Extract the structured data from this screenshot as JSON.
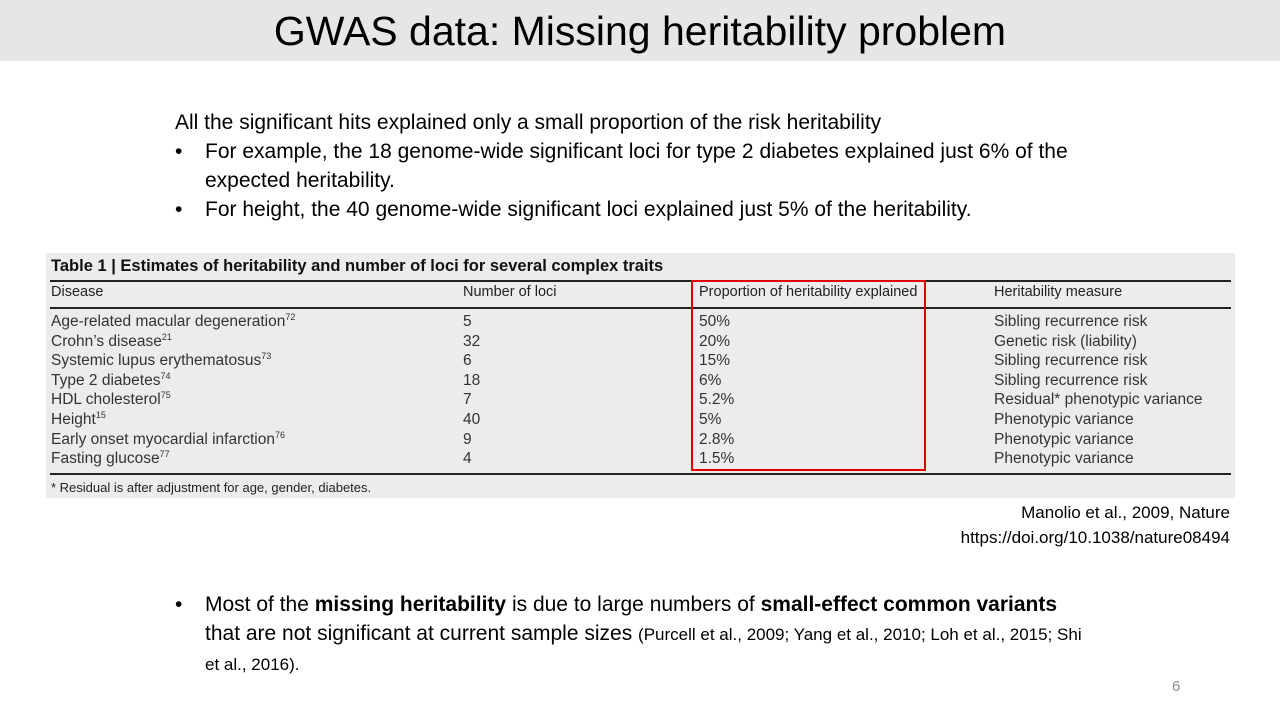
{
  "slide": {
    "title": "GWAS data: Missing heritability problem",
    "page_number": "6"
  },
  "intro": {
    "lead": "All the significant hits explained only a small proportion of the risk heritability",
    "bullet_symbol": "•",
    "bullets": [
      "For example, the 18 genome-wide significant loci for type 2 diabetes explained just 6% of the expected heritability.",
      "For height, the 40 genome-wide significant loci explained just 5% of the heritability."
    ]
  },
  "table": {
    "caption": "Table 1 | Estimates of heritability and number of loci for several complex traits",
    "headers": [
      "Disease",
      "Number of loci",
      "Proportion of heritability explained",
      "Heritability measure"
    ],
    "rows": [
      {
        "disease": "Age-related macular degeneration",
        "ref": "72",
        "loci": "5",
        "proportion": "50%",
        "measure": "Sibling recurrence risk"
      },
      {
        "disease": "Crohn’s disease",
        "ref": "21",
        "loci": "32",
        "proportion": "20%",
        "measure": "Genetic risk (liability)"
      },
      {
        "disease": "Systemic lupus erythematosus",
        "ref": "73",
        "loci": "6",
        "proportion": "15%",
        "measure": "Sibling recurrence risk"
      },
      {
        "disease": "Type 2 diabetes",
        "ref": "74",
        "loci": "18",
        "proportion": "6%",
        "measure": "Sibling recurrence risk"
      },
      {
        "disease": "HDL cholesterol",
        "ref": "75",
        "loci": "7",
        "proportion": "5.2%",
        "measure": "Residual* phenotypic variance"
      },
      {
        "disease": "Height",
        "ref": "15",
        "loci": "40",
        "proportion": "5%",
        "measure": "Phenotypic variance"
      },
      {
        "disease": "Early onset myocardial infarction",
        "ref": "76",
        "loci": "9",
        "proportion": "2.8%",
        "measure": "Phenotypic variance"
      },
      {
        "disease": "Fasting glucose",
        "ref": "77",
        "loci": "4",
        "proportion": "1.5%",
        "measure": "Phenotypic variance"
      }
    ],
    "footnote": "* Residual is after adjustment for age, gender, diabetes.",
    "highlight_color": "#e00000"
  },
  "citation": {
    "line1": "Manolio et al., 2009, Nature",
    "line2": "https://doi.org/10.1038/nature08494"
  },
  "bottom_bullet": {
    "text_a": "Most of the ",
    "bold_a": "missing heritability",
    "text_b": " is due to large numbers of ",
    "bold_b": "small-effect common variants",
    "text_c": " that are not significant at current sample sizes ",
    "refs": "(Purcell et al., 2009; Yang et al., 2010; Loh et al., 2015; Shi et al., 2016)."
  }
}
